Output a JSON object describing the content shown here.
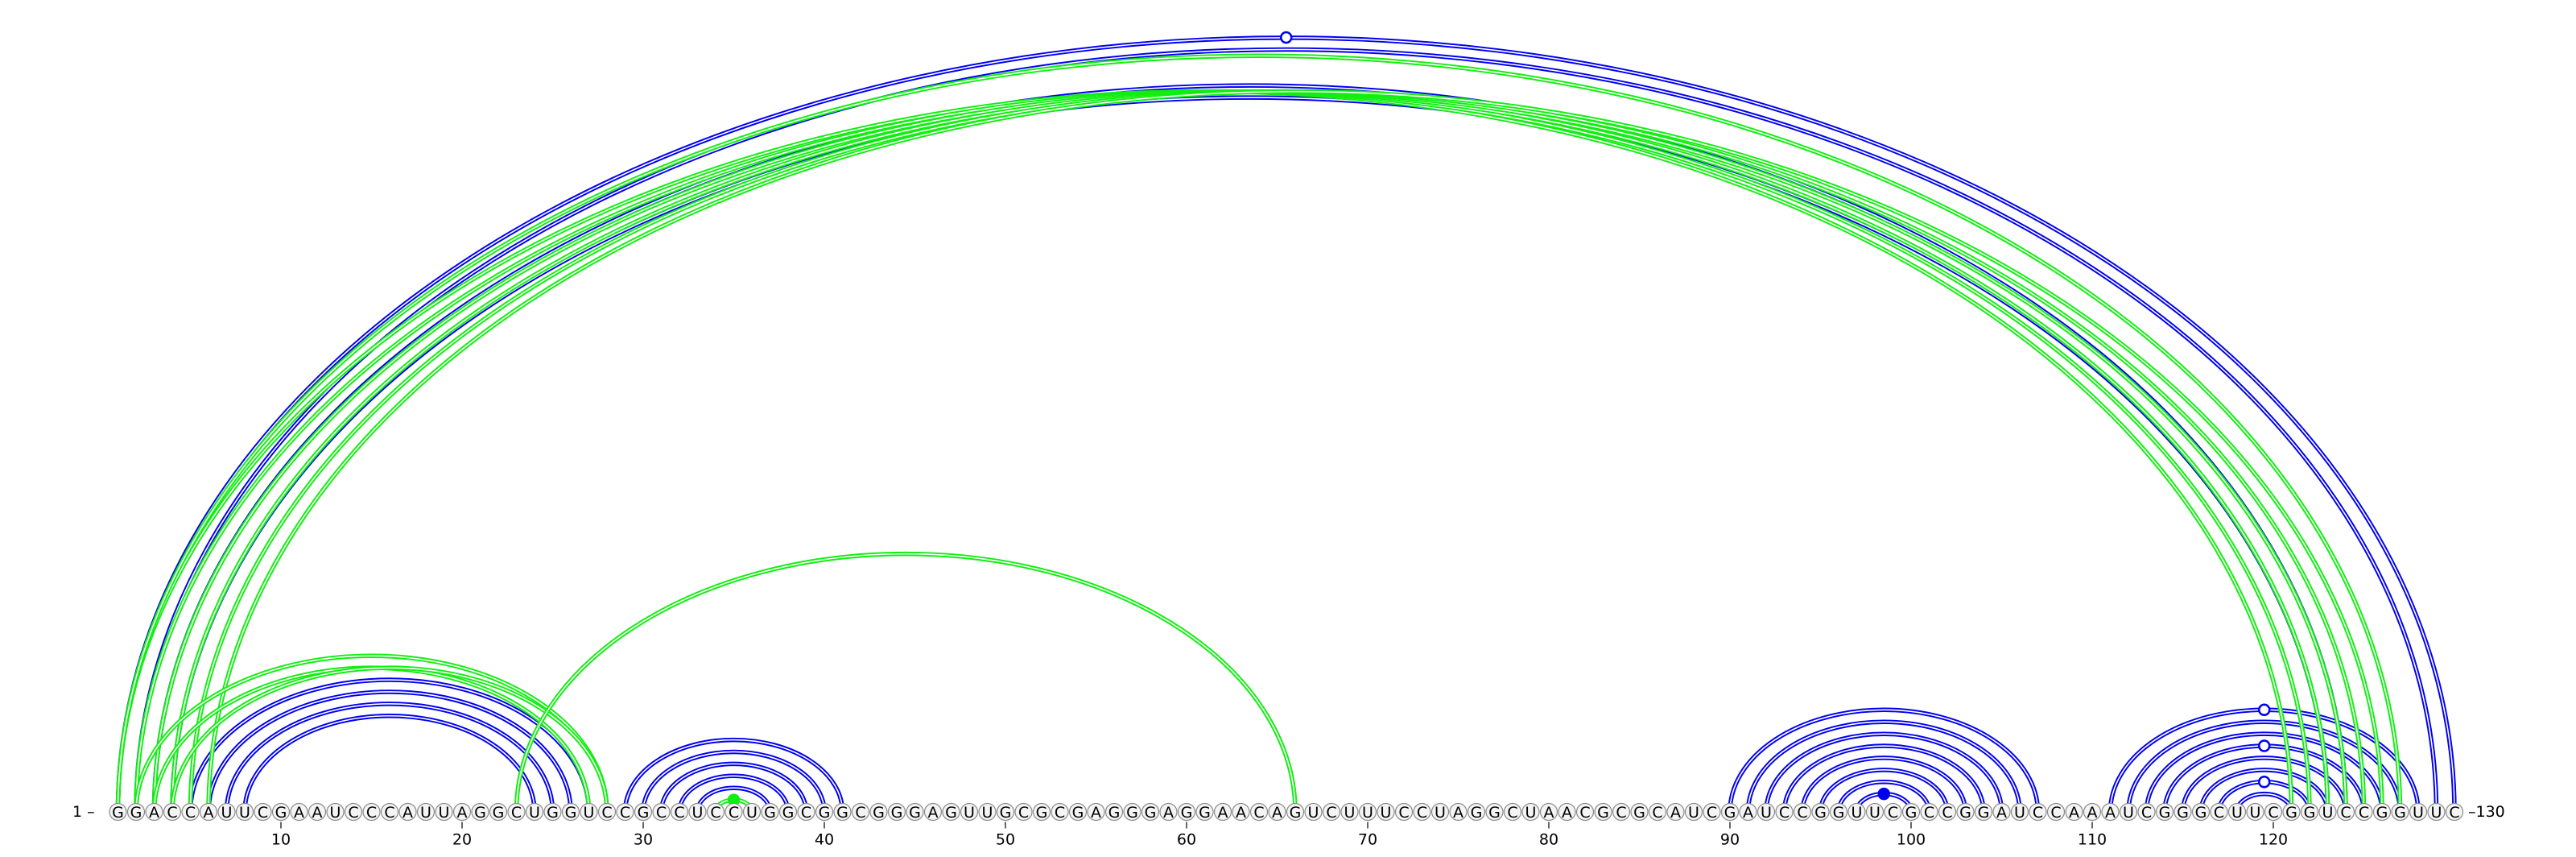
{
  "sequence": "GGACCAUUCGAAUCCCAUUAGGCUGGUCCGCCUCCUGGCGGCGGGAGUUGCGCGAGGGAGGAACAGUCUUUCCUAGGCUAACGCGCAUCGAUCCGGUUCGCCGGAUCCAAAUCGGGCUUCGGUCCGGUUC",
  "start_label": "1 –",
  "end_label": "–130",
  "tick_labels": [
    "10",
    "20",
    "30",
    "40",
    "50",
    "60",
    "70",
    "80",
    "90",
    "100",
    "110",
    "120"
  ],
  "colors": {
    "blue": "#0000ee",
    "green": "#11ee11"
  },
  "blue_pairs": [
    [
      1,
      130
    ],
    [
      2,
      129
    ],
    [
      3,
      124
    ],
    [
      4,
      123
    ],
    [
      5,
      27
    ],
    [
      6,
      26
    ],
    [
      7,
      25
    ],
    [
      8,
      24
    ],
    [
      29,
      41
    ],
    [
      30,
      40
    ],
    [
      31,
      39
    ],
    [
      32,
      38
    ],
    [
      33,
      37
    ],
    [
      90,
      107
    ],
    [
      91,
      106
    ],
    [
      92,
      105
    ],
    [
      93,
      104
    ],
    [
      94,
      103
    ],
    [
      95,
      102
    ],
    [
      96,
      101
    ],
    [
      97,
      100
    ],
    [
      111,
      128
    ],
    [
      112,
      127
    ],
    [
      113,
      126
    ],
    [
      114,
      125
    ],
    [
      115,
      124
    ],
    [
      116,
      123
    ],
    [
      117,
      122
    ],
    [
      118,
      121
    ]
  ],
  "green_pairs": [
    [
      1,
      121
    ],
    [
      2,
      122
    ],
    [
      3,
      123
    ],
    [
      4,
      124
    ],
    [
      5,
      125
    ],
    [
      6,
      126
    ],
    [
      2,
      28
    ],
    [
      3,
      27
    ],
    [
      4,
      28
    ],
    [
      23,
      66
    ],
    [
      34,
      36
    ],
    [
      1,
      127
    ]
  ],
  "markers": [
    {
      "pair": [
        1,
        130
      ],
      "color": "blue",
      "filled": false
    },
    {
      "pair": [
        34,
        36
      ],
      "color": "green",
      "filled": true
    },
    {
      "pair": [
        97,
        100
      ],
      "color": "blue",
      "filled": true
    },
    {
      "pair": [
        111,
        128
      ],
      "color": "blue",
      "filled": false
    },
    {
      "pair": [
        114,
        125
      ],
      "color": "blue",
      "filled": false
    },
    {
      "pair": [
        117,
        122
      ],
      "color": "blue",
      "filled": false
    }
  ]
}
